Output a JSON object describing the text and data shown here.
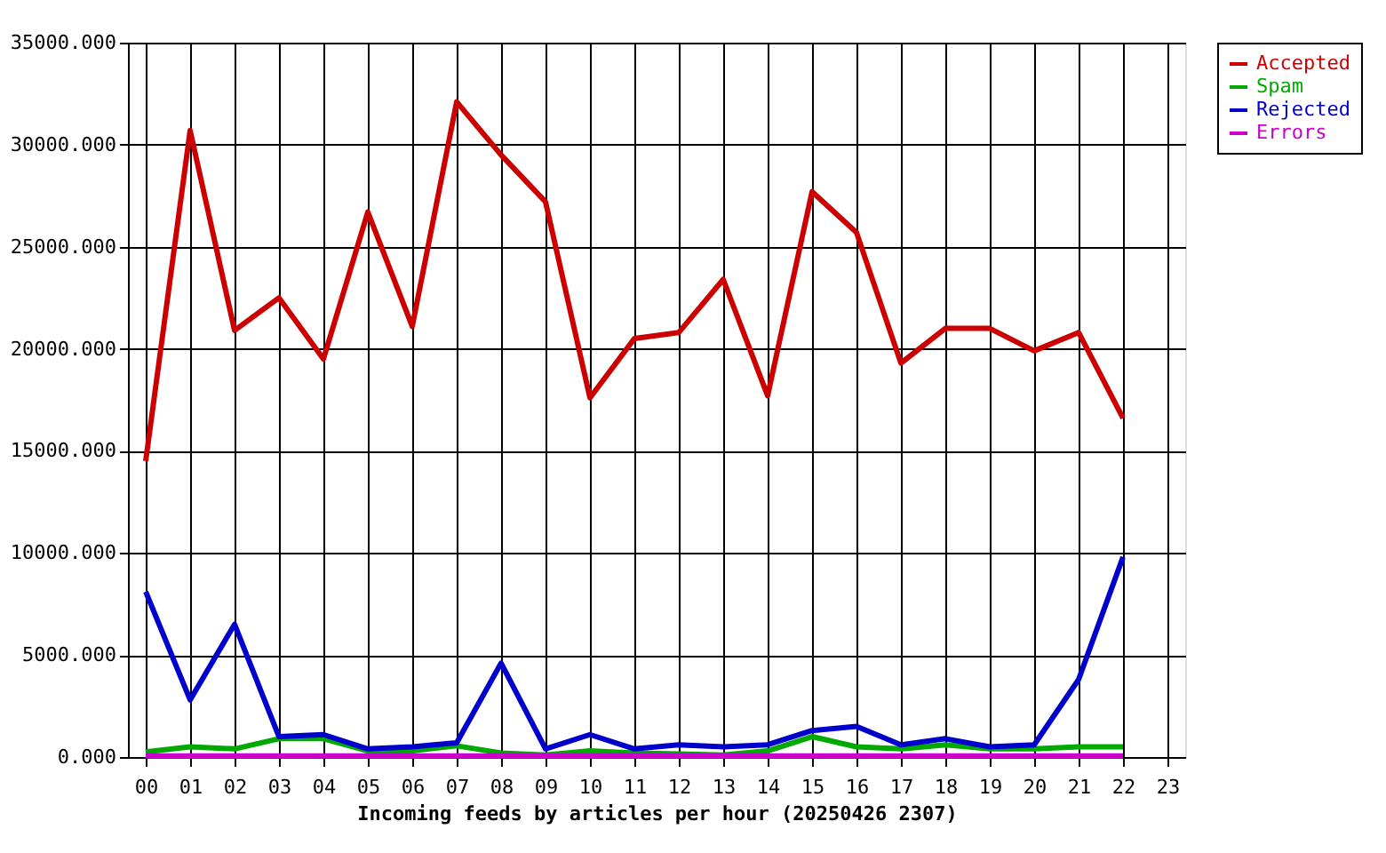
{
  "chart_data": {
    "type": "line",
    "xlabel": "Incoming feeds by articles per hour (20250426 2307)",
    "categories": [
      "00",
      "01",
      "02",
      "03",
      "04",
      "05",
      "06",
      "07",
      "08",
      "09",
      "10",
      "11",
      "12",
      "13",
      "14",
      "15",
      "16",
      "17",
      "18",
      "19",
      "20",
      "21",
      "22",
      "23"
    ],
    "series": [
      {
        "name": "Accepted",
        "color": "#cc0000",
        "values": [
          14500,
          30700,
          20900,
          22500,
          19500,
          26700,
          21100,
          32100,
          29500,
          27200,
          17600,
          20500,
          20800,
          23400,
          17700,
          27700,
          25700,
          19300,
          21000,
          21000,
          19900,
          20800,
          16600,
          null
        ]
      },
      {
        "name": "Spam",
        "color": "#00aa00",
        "values": [
          250,
          500,
          400,
          900,
          900,
          300,
          300,
          550,
          200,
          100,
          300,
          200,
          150,
          100,
          300,
          1000,
          500,
          400,
          600,
          400,
          400,
          500,
          500,
          null
        ]
      },
      {
        "name": "Rejected",
        "color": "#0000cc",
        "values": [
          8100,
          2800,
          6500,
          1000,
          1100,
          400,
          500,
          700,
          4600,
          400,
          1100,
          400,
          600,
          500,
          600,
          1300,
          1500,
          600,
          900,
          500,
          600,
          3800,
          9800,
          null
        ]
      },
      {
        "name": "Errors",
        "color": "#cc00cc",
        "values": [
          50,
          50,
          50,
          50,
          50,
          50,
          50,
          50,
          50,
          50,
          50,
          50,
          50,
          50,
          50,
          50,
          50,
          50,
          50,
          50,
          50,
          50,
          50,
          null
        ]
      }
    ],
    "ylim": [
      0,
      35000
    ],
    "yticks": [
      {
        "value": 0,
        "label": "0.000"
      },
      {
        "value": 5000,
        "label": "5000.000"
      },
      {
        "value": 10000,
        "label": "10000.000"
      },
      {
        "value": 15000,
        "label": "15000.000"
      },
      {
        "value": 20000,
        "label": "20000.000"
      },
      {
        "value": 25000,
        "label": "25000.000"
      },
      {
        "value": 30000,
        "label": "30000.000"
      },
      {
        "value": 35000,
        "label": "35000.000"
      }
    ],
    "grid": true,
    "legend": "top right"
  }
}
